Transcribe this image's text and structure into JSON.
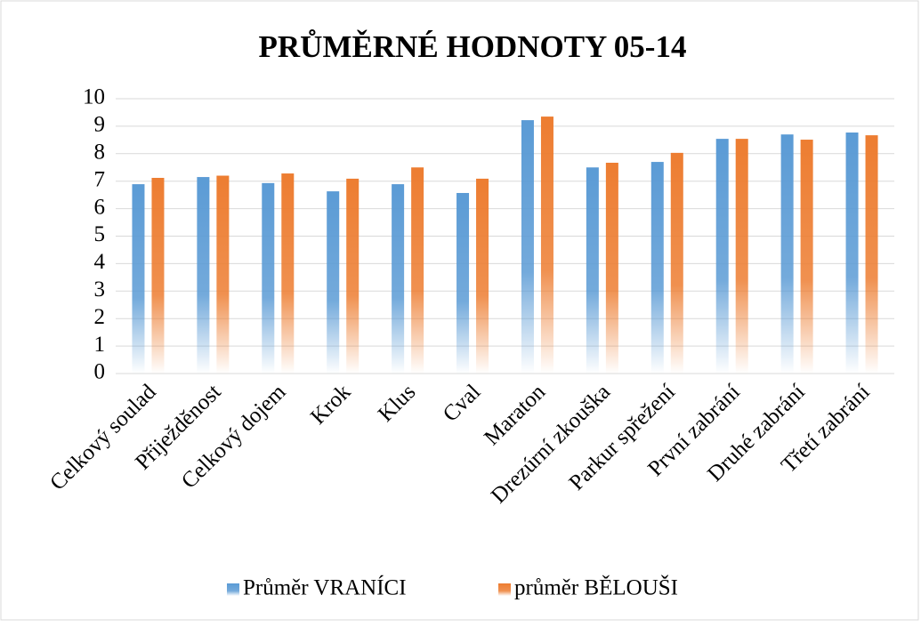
{
  "chart_data": {
    "type": "bar",
    "title": "PRŮMĚRNÉ HODNOTY 05-14",
    "categories": [
      "Celkový soulad",
      "Přiježděnost",
      "Celkový dojem",
      "Krok",
      "Klus",
      "Cval",
      "Maraton",
      "Drezúrní zkouška",
      "Parkur spřežení",
      "První zabrání",
      "Druhé zabrání",
      "Třetí zabrání"
    ],
    "series": [
      {
        "name": "Průměr VRANÍCI",
        "color": "#5b9bd5",
        "values": [
          6.89,
          7.15,
          6.93,
          6.63,
          6.89,
          6.57,
          9.22,
          7.5,
          7.7,
          8.54,
          8.7,
          8.77
        ]
      },
      {
        "name": "průměr BĚLOUŠI",
        "color": "#ed7d31",
        "values": [
          7.12,
          7.2,
          7.28,
          7.09,
          7.5,
          7.09,
          9.35,
          7.67,
          8.03,
          8.54,
          8.51,
          8.67
        ]
      }
    ],
    "ylim": [
      0,
      10
    ],
    "yticks": [
      0,
      1,
      2,
      3,
      4,
      5,
      6,
      7,
      8,
      9,
      10
    ],
    "grid": true,
    "legend": "bottom"
  }
}
